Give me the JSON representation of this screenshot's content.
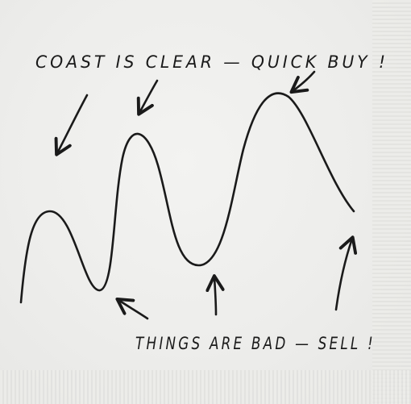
{
  "captions": {
    "top": "COAST IS CLEAR — QUICK BUY !",
    "bottom": "THINGS ARE BAD — SELL !"
  },
  "colors": {
    "ink": "#1a1a1a",
    "napkin": "#efefed"
  },
  "icons": {
    "arrow": "arrow-icon",
    "wave": "wave-line"
  }
}
